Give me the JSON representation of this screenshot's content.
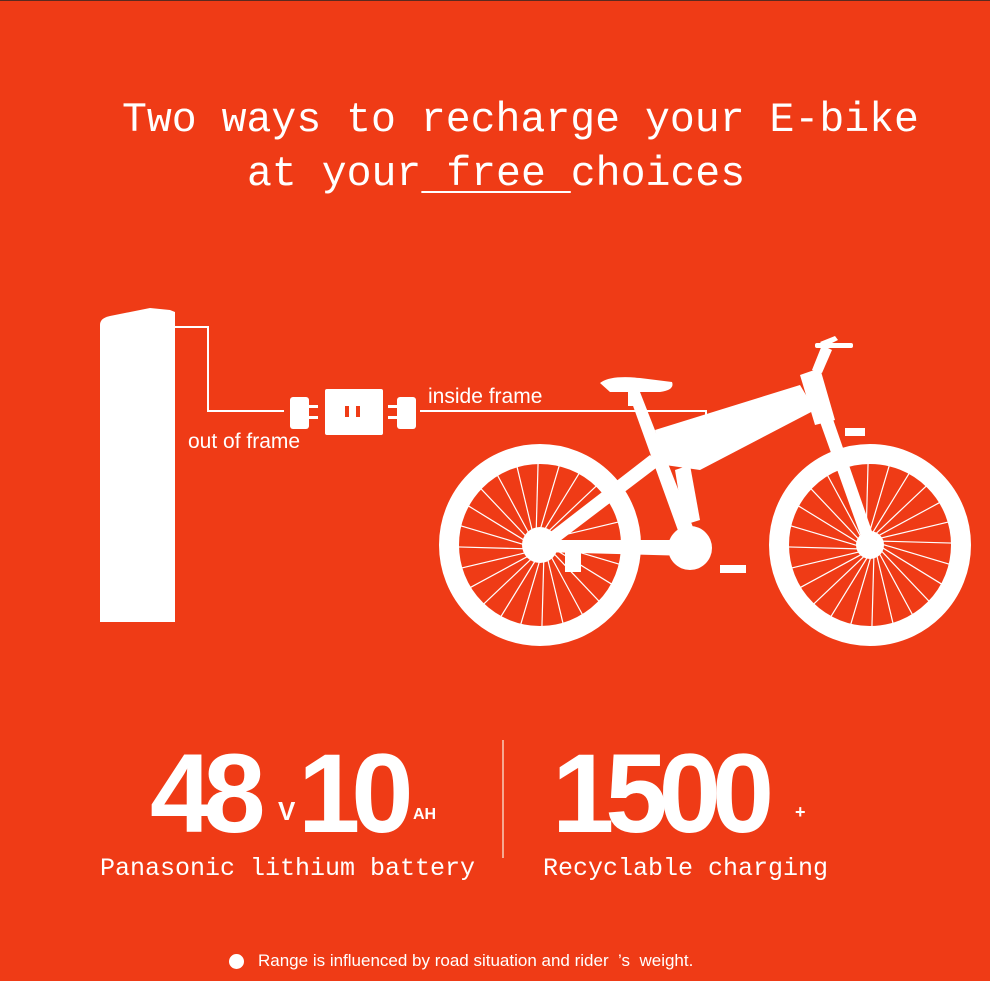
{
  "colors": {
    "background": "#ef3b16",
    "foreground": "#ffffff"
  },
  "headline": {
    "line1": "Two ways to recharge your E-bike",
    "line2_before": "at your",
    "line2_emph": " free ",
    "line2_after": "choices"
  },
  "diagram": {
    "out_label": "out of frame",
    "in_label": "inside frame",
    "icons": [
      "battery-icon",
      "plug-icon",
      "charger-icon",
      "e-bike-icon"
    ]
  },
  "specs": {
    "voltage": {
      "value": "48",
      "unit": "V"
    },
    "capacity": {
      "value": "10",
      "unit": "AH"
    },
    "battery_caption": "Panasonic lithium battery",
    "cycles": {
      "value": "1500",
      "unit": "+"
    },
    "cycles_caption": "Recyclable charging"
  },
  "note": "Range is influenced by road situation and rider  ’s  weight."
}
